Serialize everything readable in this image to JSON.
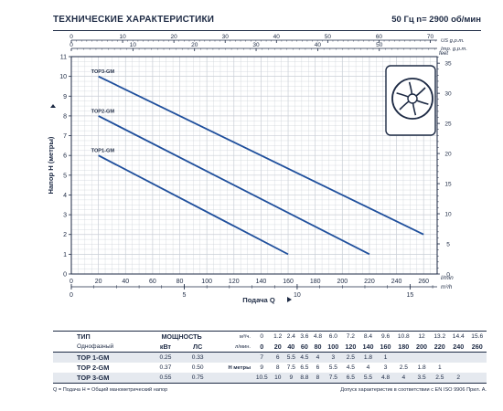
{
  "header": {
    "title": "ТЕХНИЧЕСКИЕ ХАРАКТЕРИСТИКИ",
    "spec": "50 Гц   n= 2900 об/мин"
  },
  "chart_data": {
    "type": "line",
    "ylabel": "Напор  Н  (метры)",
    "xlabel": "Подача  Q",
    "primary_x": {
      "unit": "l/min",
      "range": [
        0,
        270
      ],
      "ticks": [
        0,
        20,
        40,
        60,
        80,
        100,
        120,
        140,
        160,
        180,
        200,
        220,
        240,
        260
      ]
    },
    "m3h_axis": {
      "unit": "m³/h",
      "range": [
        0,
        16.2
      ],
      "ticks": [
        0,
        5,
        10,
        15
      ]
    },
    "us_gpm_axis": {
      "label": "US g.p.m.",
      "ticks": [
        0,
        10,
        20,
        30,
        40,
        50,
        60,
        70
      ]
    },
    "imp_gpm_axis": {
      "label": "Imp. g.p.m.",
      "ticks": [
        0,
        10,
        20,
        30,
        40,
        50,
        60
      ]
    },
    "y_left": {
      "unit": "m",
      "range": [
        0,
        11
      ],
      "ticks": [
        0,
        1,
        2,
        3,
        4,
        5,
        6,
        7,
        8,
        9,
        10,
        11
      ]
    },
    "y_right": {
      "label": "feet",
      "ticks": [
        0,
        5,
        10,
        15,
        20,
        25,
        30,
        35
      ]
    },
    "grid": true,
    "series": [
      {
        "name": "TOP3-GM",
        "x": [
          20,
          260
        ],
        "y": [
          10,
          2
        ]
      },
      {
        "name": "TOP2-GM",
        "x": [
          20,
          220
        ],
        "y": [
          8,
          1
        ]
      },
      {
        "name": "TOP1-GM",
        "x": [
          20,
          160
        ],
        "y": [
          6,
          1
        ]
      }
    ]
  },
  "table": {
    "h_type": "ТИП",
    "h_power": "МОЩНОСТЬ",
    "h_single": "Однофазный",
    "h_kw": "кВт",
    "h_hp": "ЛС",
    "unit_q1": "м³/ч.",
    "unit_q2": "л/мин.",
    "unit_h": "Н  метры",
    "q_m3h": [
      "0",
      "1.2",
      "2.4",
      "3.6",
      "4.8",
      "6.0",
      "7.2",
      "8.4",
      "9.6",
      "10.8",
      "12",
      "13.2",
      "14.4",
      "15.6"
    ],
    "q_lmin": [
      "0",
      "20",
      "40",
      "60",
      "80",
      "100",
      "120",
      "140",
      "160",
      "180",
      "200",
      "220",
      "240",
      "260"
    ],
    "rows": [
      {
        "model": "TOP 1-GM",
        "kw": "0.25",
        "hp": "0.33",
        "h": [
          "7",
          "6",
          "5.5",
          "4.5",
          "4",
          "3",
          "2.5",
          "1.8",
          "1",
          "",
          "",
          "",
          "",
          ""
        ]
      },
      {
        "model": "TOP 2-GM",
        "kw": "0.37",
        "hp": "0.50",
        "h": [
          "9",
          "8",
          "7.5",
          "6.5",
          "6",
          "5.5",
          "4.5",
          "4",
          "3",
          "2.5",
          "1.8",
          "1",
          "",
          ""
        ]
      },
      {
        "model": "TOP 3-GM",
        "kw": "0.55",
        "hp": "0.75",
        "h": [
          "10.5",
          "10",
          "9",
          "8.8",
          "8",
          "7.5",
          "6.5",
          "5.5",
          "4.8",
          "4",
          "3.5",
          "2.5",
          "2",
          ""
        ]
      }
    ]
  },
  "footer": {
    "left": "Q = Подача  H = Общий манометрический напор",
    "right": "Допуск характеристик в соответствии с EN ISO 9906 Прил. А."
  }
}
